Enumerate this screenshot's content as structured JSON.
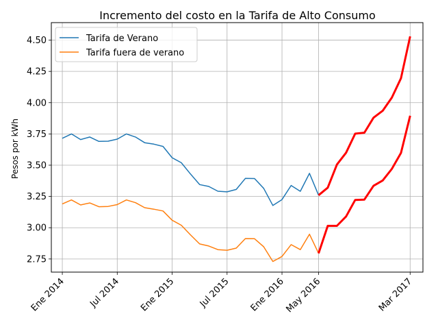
{
  "chart_data": {
    "type": "line",
    "title": "Incremento del costo en la Tarifa de Alto Consumo",
    "xlabel": "",
    "ylabel": "Pesos por kWh",
    "ylim": [
      2.645,
      4.64
    ],
    "yticks": [
      "2.75",
      "3.00",
      "3.25",
      "3.50",
      "3.75",
      "4.00",
      "4.25",
      "4.50"
    ],
    "xticks": [
      {
        "label": "Ene 2014",
        "x": 0
      },
      {
        "label": "Jul 2014",
        "x": 6
      },
      {
        "label": "Ene 2015",
        "x": 12
      },
      {
        "label": "Jul 2015",
        "x": 18
      },
      {
        "label": "Ene 2016",
        "x": 24
      },
      {
        "label": "May 2016",
        "x": 28
      },
      {
        "label": "Mar 2017",
        "x": 38
      }
    ],
    "grid": true,
    "legend_position": "top-left",
    "series": [
      {
        "name": "Tarifa de Verano",
        "color": "#1f77b4",
        "values": [
          3.715,
          3.75,
          3.705,
          3.725,
          3.69,
          3.692,
          3.708,
          3.75,
          3.725,
          3.68,
          3.668,
          3.65,
          3.56,
          3.52,
          3.43,
          3.345,
          3.33,
          3.292,
          3.287,
          3.306,
          3.394,
          3.393,
          3.315,
          3.178,
          3.225,
          3.338,
          3.291,
          3.435,
          3.26
        ]
      },
      {
        "name": "Tarifa fuera de verano",
        "color": "#ff7f0e",
        "values": [
          3.19,
          3.222,
          3.182,
          3.198,
          3.168,
          3.17,
          3.185,
          3.222,
          3.2,
          3.16,
          3.148,
          3.134,
          3.06,
          3.02,
          2.943,
          2.87,
          2.854,
          2.825,
          2.82,
          2.837,
          2.913,
          2.912,
          2.848,
          2.73,
          2.77,
          2.865,
          2.825,
          2.948,
          2.795
        ]
      }
    ],
    "projections": [
      {
        "color": "#ff0000",
        "x_start": 28,
        "values": [
          3.26,
          3.32,
          3.505,
          3.6,
          3.752,
          3.76,
          3.88,
          3.935,
          4.04,
          4.195,
          4.53
        ]
      },
      {
        "color": "#ff0000",
        "x_start": 28,
        "values": [
          2.795,
          3.015,
          3.015,
          3.09,
          3.222,
          3.225,
          3.335,
          3.378,
          3.47,
          3.598,
          3.895
        ]
      }
    ]
  }
}
